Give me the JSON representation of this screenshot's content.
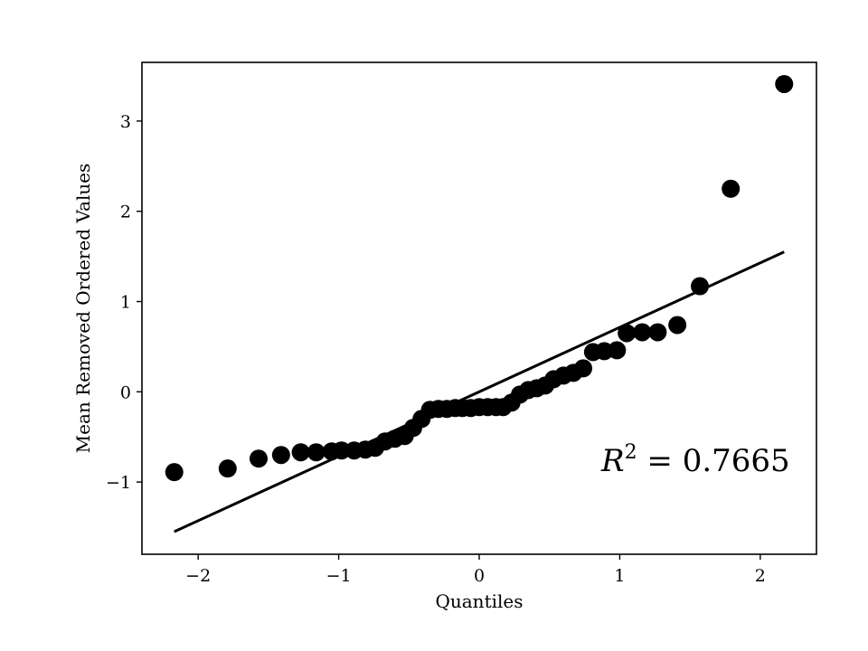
{
  "chart_data": {
    "type": "scatter",
    "xlabel": "Quantiles",
    "ylabel": "Mean Removed Ordered Values",
    "xlim": [
      -2.4,
      2.4
    ],
    "ylim": [
      -1.8,
      3.65
    ],
    "xticks": [
      -2,
      -1,
      0,
      1,
      2
    ],
    "xtick_labels": [
      "−2",
      "−1",
      "0",
      "1",
      "2"
    ],
    "yticks": [
      -1,
      0,
      1,
      2,
      3
    ],
    "ytick_labels": [
      "−1",
      "0",
      "1",
      "2",
      "3"
    ],
    "grid": false,
    "annotation": {
      "text_var": "R",
      "text_sup": "2",
      "text_rest": " = 0.7665"
    },
    "fit_line": {
      "x": [
        -2.17,
        2.17
      ],
      "y": [
        -1.55,
        1.55
      ]
    },
    "points": [
      {
        "x": -2.17,
        "y": -0.89
      },
      {
        "x": -1.79,
        "y": -0.85
      },
      {
        "x": -1.57,
        "y": -0.74
      },
      {
        "x": -1.41,
        "y": -0.7
      },
      {
        "x": -1.27,
        "y": -0.67
      },
      {
        "x": -1.16,
        "y": -0.67
      },
      {
        "x": -1.05,
        "y": -0.66
      },
      {
        "x": -0.98,
        "y": -0.65
      },
      {
        "x": -0.89,
        "y": -0.65
      },
      {
        "x": -0.81,
        "y": -0.64
      },
      {
        "x": -0.74,
        "y": -0.62
      },
      {
        "x": -0.67,
        "y": -0.55
      },
      {
        "x": -0.6,
        "y": -0.52
      },
      {
        "x": -0.53,
        "y": -0.49
      },
      {
        "x": -0.47,
        "y": -0.4
      },
      {
        "x": -0.41,
        "y": -0.3
      },
      {
        "x": -0.35,
        "y": -0.2
      },
      {
        "x": -0.29,
        "y": -0.19
      },
      {
        "x": -0.23,
        "y": -0.19
      },
      {
        "x": -0.17,
        "y": -0.18
      },
      {
        "x": -0.12,
        "y": -0.18
      },
      {
        "x": -0.06,
        "y": -0.18
      },
      {
        "x": 0.0,
        "y": -0.17
      },
      {
        "x": 0.06,
        "y": -0.17
      },
      {
        "x": 0.12,
        "y": -0.17
      },
      {
        "x": 0.17,
        "y": -0.17
      },
      {
        "x": 0.23,
        "y": -0.12
      },
      {
        "x": 0.29,
        "y": -0.03
      },
      {
        "x": 0.35,
        "y": 0.02
      },
      {
        "x": 0.41,
        "y": 0.04
      },
      {
        "x": 0.47,
        "y": 0.07
      },
      {
        "x": 0.53,
        "y": 0.14
      },
      {
        "x": 0.6,
        "y": 0.18
      },
      {
        "x": 0.67,
        "y": 0.21
      },
      {
        "x": 0.74,
        "y": 0.26
      },
      {
        "x": 0.81,
        "y": 0.44
      },
      {
        "x": 0.89,
        "y": 0.45
      },
      {
        "x": 0.98,
        "y": 0.46
      },
      {
        "x": 1.05,
        "y": 0.65
      },
      {
        "x": 1.16,
        "y": 0.66
      },
      {
        "x": 1.27,
        "y": 0.66
      },
      {
        "x": 1.41,
        "y": 0.74
      },
      {
        "x": 1.57,
        "y": 1.17
      },
      {
        "x": 1.79,
        "y": 2.25
      },
      {
        "x": 2.17,
        "y": 3.41
      }
    ]
  }
}
